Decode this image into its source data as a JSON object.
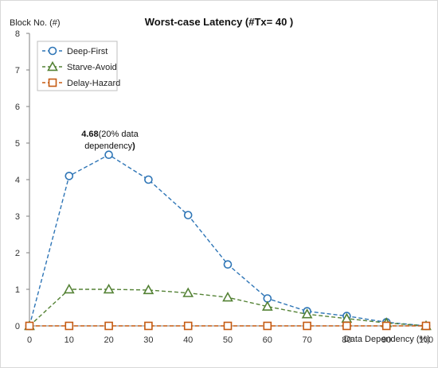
{
  "chart_data": {
    "type": "line",
    "title": "Worst-case Latency (#Tx= 40 )",
    "xlabel": "Data Dependency (%)",
    "ylabel": "Block No. (#)",
    "x": [
      0,
      10,
      20,
      30,
      40,
      50,
      60,
      70,
      80,
      90,
      100
    ],
    "xlim": [
      0,
      100
    ],
    "ylim": [
      0,
      8
    ],
    "x_ticks": [
      "0",
      "10",
      "20",
      "30",
      "40",
      "50",
      "60",
      "70",
      "80",
      "90",
      "100"
    ],
    "y_ticks": [
      "0",
      "1",
      "2",
      "3",
      "4",
      "5",
      "6",
      "7",
      "8"
    ],
    "grid": false,
    "legend_position": "top-left",
    "series": [
      {
        "name": "Deep-First",
        "color": "#2e75b6",
        "marker": "circle",
        "values": [
          0,
          4.1,
          4.68,
          4.0,
          3.03,
          1.68,
          0.75,
          0.4,
          0.27,
          0.1,
          0
        ]
      },
      {
        "name": "Starve-Avoid",
        "color": "#548235",
        "marker": "triangle",
        "values": [
          0,
          1.0,
          1.0,
          0.98,
          0.9,
          0.78,
          0.53,
          0.32,
          0.2,
          0.08,
          0
        ]
      },
      {
        "name": "Delay-Hazard",
        "color": "#c55a11",
        "marker": "square",
        "values": [
          0,
          0,
          0,
          0,
          0,
          0,
          0,
          0,
          0,
          0,
          0
        ]
      }
    ],
    "annotation": {
      "bold": "4.68",
      "text": "(20% data",
      "text2": "dependency",
      "closing": ")",
      "x": 20,
      "y": 4.68
    }
  }
}
